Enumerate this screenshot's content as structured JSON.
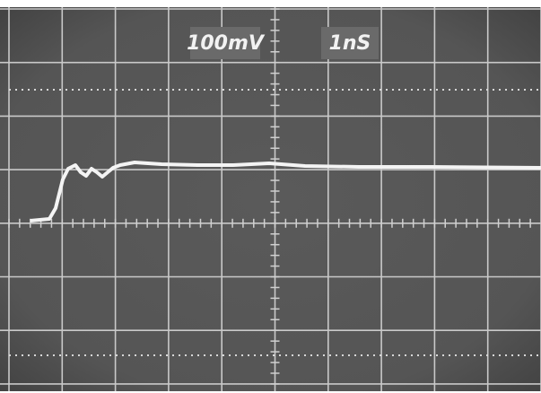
{
  "screen": {
    "volts_per_div": "100mV",
    "time_per_div": "1nS"
  }
}
